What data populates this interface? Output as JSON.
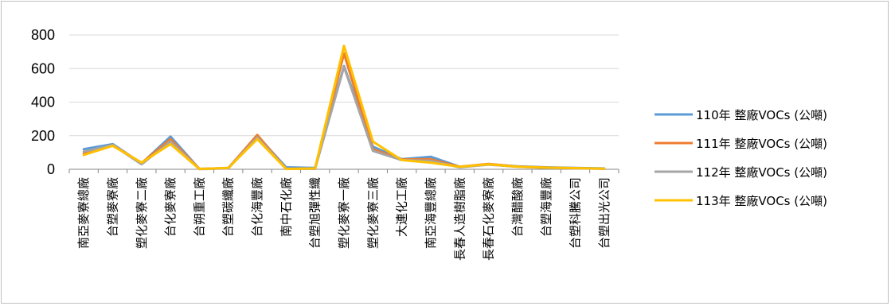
{
  "chart_data": {
    "type": "line",
    "title": "",
    "xlabel": "",
    "ylabel": "",
    "ylim": [
      0,
      800
    ],
    "yticks": [
      0,
      200,
      400,
      600,
      800
    ],
    "grid": true,
    "legend_position": "right",
    "categories": [
      "南亞麥寮總廠",
      "台塑麥寮廠",
      "塑化麥寮二廠",
      "台化麥寮廠",
      "台朔重工廠",
      "台塑碳纖廠",
      "台化海豐廠",
      "南中石化廠",
      "台塑旭彈性纖",
      "塑化麥寮一廠",
      "塑化麥寮三廠",
      "大連化工廠",
      "南亞海豐總廠",
      "長春人造樹脂廠",
      "長春石化麥寮廠",
      "台灣醋酸廠",
      "台塑海豐廠",
      "台塑科騰公司",
      "台塑出光公司"
    ],
    "series": [
      {
        "name": "110年 整廠VOCs (公噸)",
        "color": "#5b9bd5",
        "values": [
          120,
          150,
          35,
          195,
          2,
          8,
          200,
          12,
          8,
          615,
          135,
          60,
          75,
          15,
          30,
          18,
          12,
          8,
          5
        ]
      },
      {
        "name": "111年 整廠VOCs (公噸)",
        "color": "#ed7d31",
        "values": [
          95,
          145,
          38,
          180,
          3,
          6,
          205,
          3,
          4,
          690,
          120,
          58,
          60,
          15,
          32,
          16,
          10,
          6,
          4
        ]
      },
      {
        "name": "112年 整廠VOCs (公噸)",
        "color": "#a5a5a5",
        "values": [
          105,
          145,
          30,
          165,
          1,
          5,
          190,
          4,
          3,
          610,
          110,
          55,
          50,
          12,
          28,
          15,
          8,
          5,
          3
        ]
      },
      {
        "name": "113年 整廠VOCs (公噸)",
        "color": "#ffc000",
        "values": [
          85,
          140,
          40,
          150,
          2,
          8,
          180,
          2,
          5,
          735,
          165,
          55,
          40,
          15,
          30,
          15,
          10,
          7,
          4
        ]
      }
    ]
  }
}
